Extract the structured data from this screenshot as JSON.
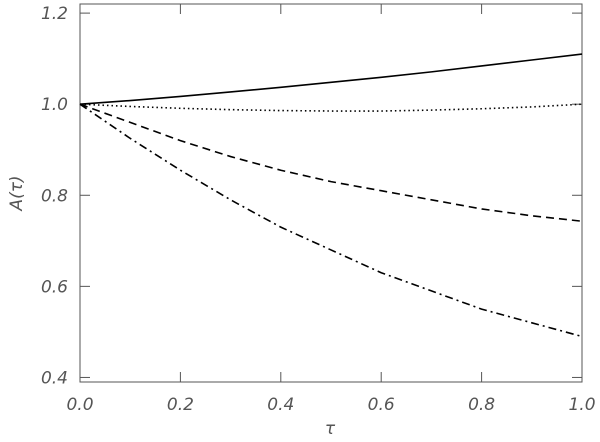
{
  "chart_data": {
    "type": "line",
    "x_label": "τ",
    "y_label": "A(τ)",
    "x": [
      0,
      0.1,
      0.2,
      0.3,
      0.4,
      0.5,
      0.6,
      0.7,
      0.8,
      0.9,
      1
    ],
    "series": [
      {
        "color": "#000000",
        "dash": "solid",
        "values": [
          1.0,
          1.008,
          1.017,
          1.027,
          1.037,
          1.048,
          1.059,
          1.071,
          1.084,
          1.097,
          1.11
        ]
      },
      {
        "color": "#000000",
        "dash": "dotted",
        "values": [
          1.0,
          0.995,
          0.991,
          0.988,
          0.986,
          0.985,
          0.985,
          0.987,
          0.99,
          0.994,
          1.0
        ]
      },
      {
        "color": "#000000",
        "dash": "dashed",
        "values": [
          1.0,
          0.96,
          0.92,
          0.885,
          0.855,
          0.83,
          0.81,
          0.79,
          0.77,
          0.755,
          0.743
        ]
      },
      {
        "color": "#000000",
        "dash": "dashdot",
        "values": [
          1.0,
          0.925,
          0.855,
          0.79,
          0.73,
          0.68,
          0.63,
          0.59,
          0.55,
          0.52,
          0.49
        ]
      }
    ],
    "xlim": [
      0,
      1
    ],
    "xticks": [
      {
        "value": 0,
        "label": "0.0"
      },
      0.2,
      0.4,
      0.6,
      0.8,
      {
        "value": 1,
        "label": "1.0"
      }
    ],
    "ylim": [
      0.39,
      1.22
    ],
    "yticks": [
      0.4,
      0.6,
      0.8,
      {
        "value": 1,
        "label": "1.0"
      },
      1.2
    ],
    "grid": false
  }
}
